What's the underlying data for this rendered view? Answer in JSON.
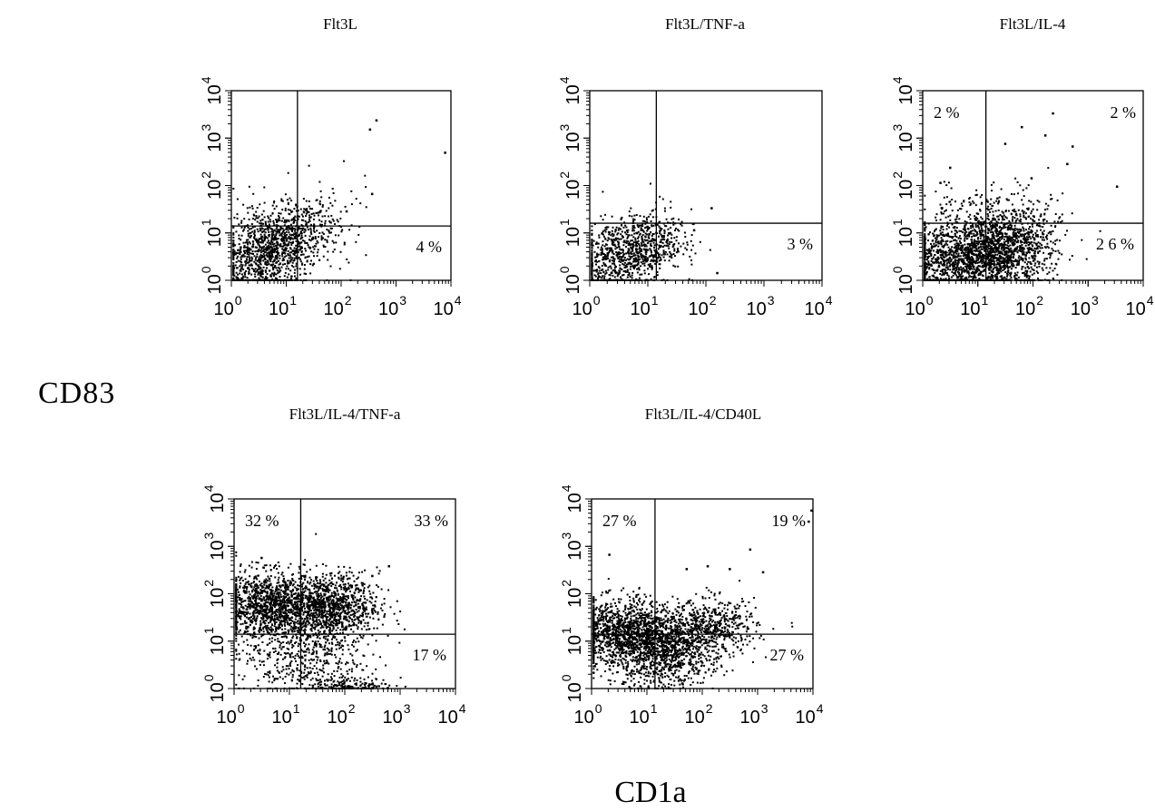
{
  "figure": {
    "y_axis_label": "CD83",
    "x_axis_label": "CD1a"
  },
  "chart_data": [
    {
      "type": "scatter",
      "title": "Flt3L",
      "xlabel": "CD1a",
      "ylabel": "CD83",
      "xscale": "log",
      "yscale": "log",
      "xlim": [
        1,
        10000
      ],
      "ylim": [
        1,
        10000
      ],
      "x_ticks": [
        "10^0",
        "10^1",
        "10^2",
        "10^3",
        "10^4"
      ],
      "y_ticks": [
        "10^0",
        "10^1",
        "10^2",
        "10^3",
        "10^4"
      ],
      "quadrant_gate": {
        "x": 16,
        "y": 14
      },
      "quadrant_labels": {
        "upper_left": "",
        "upper_right": "",
        "lower_right": "4 %"
      },
      "dot_color": "#000000",
      "clusters": [
        {
          "center": [
            4,
            3
          ],
          "spread": [
            0.5,
            0.45
          ],
          "n": 900,
          "tilt": 0.5
        },
        {
          "center": [
            12,
            8
          ],
          "spread": [
            0.45,
            0.4
          ],
          "n": 350,
          "tilt": 0.3
        },
        {
          "center": [
            40,
            12
          ],
          "spread": [
            0.5,
            0.5
          ],
          "n": 60,
          "tilt": 0
        },
        {
          "center": [
            3,
            12
          ],
          "spread": [
            0.35,
            0.35
          ],
          "n": 80,
          "tilt": 0
        }
      ],
      "outliers": [
        [
          320,
          1600
        ],
        [
          420,
          2500
        ],
        [
          7500,
          520
        ],
        [
          350,
          70
        ],
        [
          120,
          30
        ],
        [
          40,
          30
        ]
      ]
    },
    {
      "type": "scatter",
      "title": "Flt3L/TNF-a",
      "xlabel": "CD1a",
      "ylabel": "CD83",
      "xscale": "log",
      "yscale": "log",
      "xlim": [
        1,
        10000
      ],
      "ylim": [
        1,
        10000
      ],
      "x_ticks": [
        "10^0",
        "10^1",
        "10^2",
        "10^3",
        "10^4"
      ],
      "y_ticks": [
        "10^0",
        "10^1",
        "10^2",
        "10^3",
        "10^4"
      ],
      "quadrant_gate": {
        "x": 14,
        "y": 16
      },
      "quadrant_labels": {
        "upper_left": "",
        "upper_right": "",
        "lower_right": "3 %"
      },
      "dot_color": "#000000",
      "clusters": [
        {
          "center": [
            3,
            3
          ],
          "spread": [
            0.45,
            0.4
          ],
          "n": 700,
          "tilt": 0.3
        },
        {
          "center": [
            8,
            6
          ],
          "spread": [
            0.35,
            0.35
          ],
          "n": 300,
          "tilt": 0.2
        },
        {
          "center": [
            20,
            12
          ],
          "spread": [
            0.3,
            0.3
          ],
          "n": 30,
          "tilt": 0
        }
      ],
      "outliers": [
        [
          120,
          35
        ],
        [
          150,
          1.5
        ],
        [
          60,
          12
        ]
      ]
    },
    {
      "type": "scatter",
      "title": "Flt3L/IL-4",
      "xlabel": "CD1a",
      "ylabel": "CD83",
      "xscale": "log",
      "yscale": "log",
      "xlim": [
        1,
        10000
      ],
      "ylim": [
        1,
        10000
      ],
      "x_ticks": [
        "10^0",
        "10^1",
        "10^2",
        "10^3",
        "10^4"
      ],
      "y_ticks": [
        "10^0",
        "10^1",
        "10^2",
        "10^3",
        "10^4"
      ],
      "quadrant_gate": {
        "x": 14,
        "y": 16
      },
      "quadrant_labels": {
        "upper_left": "2 %",
        "upper_right": "2 %",
        "lower_right": "2 6 %"
      },
      "dot_color": "#000000",
      "clusters": [
        {
          "center": [
            4,
            3
          ],
          "spread": [
            0.55,
            0.4
          ],
          "n": 1200,
          "tilt": 0.15
        },
        {
          "center": [
            25,
            4
          ],
          "spread": [
            0.45,
            0.4
          ],
          "n": 900,
          "tilt": 0.1
        },
        {
          "center": [
            60,
            8
          ],
          "spread": [
            0.4,
            0.45
          ],
          "n": 300,
          "tilt": 0
        },
        {
          "center": [
            8,
            25
          ],
          "spread": [
            0.5,
            0.4
          ],
          "n": 100,
          "tilt": 0
        }
      ],
      "outliers": [
        [
          220,
          3500
        ],
        [
          60,
          1800
        ],
        [
          160,
          1200
        ],
        [
          500,
          700
        ],
        [
          3200,
          100
        ],
        [
          90,
          150
        ],
        [
          400,
          300
        ],
        [
          3,
          250
        ],
        [
          2,
          120
        ],
        [
          30,
          800
        ]
      ]
    },
    {
      "type": "scatter",
      "title": "Flt3L/IL-4/TNF-a",
      "xlabel": "CD1a",
      "ylabel": "CD83",
      "xscale": "log",
      "yscale": "log",
      "xlim": [
        1,
        10000
      ],
      "ylim": [
        1,
        10000
      ],
      "x_ticks": [
        "10^0",
        "10^1",
        "10^2",
        "10^3",
        "10^4"
      ],
      "y_ticks": [
        "10^0",
        "10^1",
        "10^2",
        "10^3",
        "10^4"
      ],
      "quadrant_gate": {
        "x": 16,
        "y": 14
      },
      "quadrant_labels": {
        "upper_left": "32 %",
        "upper_right": "33 %",
        "lower_right": "17 %"
      },
      "dot_color": "#000000",
      "clusters": [
        {
          "center": [
            4,
            60
          ],
          "spread": [
            0.45,
            0.35
          ],
          "n": 1100,
          "tilt": 0
        },
        {
          "center": [
            50,
            55
          ],
          "spread": [
            0.45,
            0.35
          ],
          "n": 1100,
          "tilt": 0
        },
        {
          "center": [
            15,
            5
          ],
          "spread": [
            0.55,
            0.45
          ],
          "n": 500,
          "tilt": 0
        },
        {
          "center": [
            150,
            1.2
          ],
          "spread": [
            0.35,
            0.08
          ],
          "n": 150,
          "tilt": 0
        }
      ],
      "outliers": [
        [
          3,
          600
        ],
        [
          600,
          400
        ],
        [
          300,
          250
        ]
      ]
    },
    {
      "type": "scatter",
      "title": "Flt3L/IL-4/CD40L",
      "xlabel": "CD1a",
      "ylabel": "CD83",
      "xscale": "log",
      "yscale": "log",
      "xlim": [
        1,
        10000
      ],
      "ylim": [
        1,
        10000
      ],
      "x_ticks": [
        "10^0",
        "10^1",
        "10^2",
        "10^3",
        "10^4"
      ],
      "y_ticks": [
        "10^0",
        "10^1",
        "10^2",
        "10^3",
        "10^4"
      ],
      "quadrant_gate": {
        "x": 14,
        "y": 14
      },
      "quadrant_labels": {
        "upper_left": "27 %",
        "upper_right": "19 %",
        "lower_right": "27 %"
      },
      "dot_color": "#000000",
      "clusters": [
        {
          "center": [
            3,
            15
          ],
          "spread": [
            0.45,
            0.35
          ],
          "n": 1100,
          "tilt": 0
        },
        {
          "center": [
            20,
            10
          ],
          "spread": [
            0.45,
            0.35
          ],
          "n": 900,
          "tilt": 0
        },
        {
          "center": [
            150,
            20
          ],
          "spread": [
            0.4,
            0.3
          ],
          "n": 500,
          "tilt": 0
        },
        {
          "center": [
            20,
            3
          ],
          "spread": [
            0.5,
            0.3
          ],
          "n": 250,
          "tilt": 0
        }
      ],
      "outliers": [
        [
          700,
          900
        ],
        [
          8000,
          3500
        ],
        [
          2,
          700
        ],
        [
          120,
          400
        ],
        [
          1200,
          300
        ],
        [
          300,
          350
        ],
        [
          50,
          350
        ],
        [
          9000,
          6000
        ]
      ]
    }
  ]
}
